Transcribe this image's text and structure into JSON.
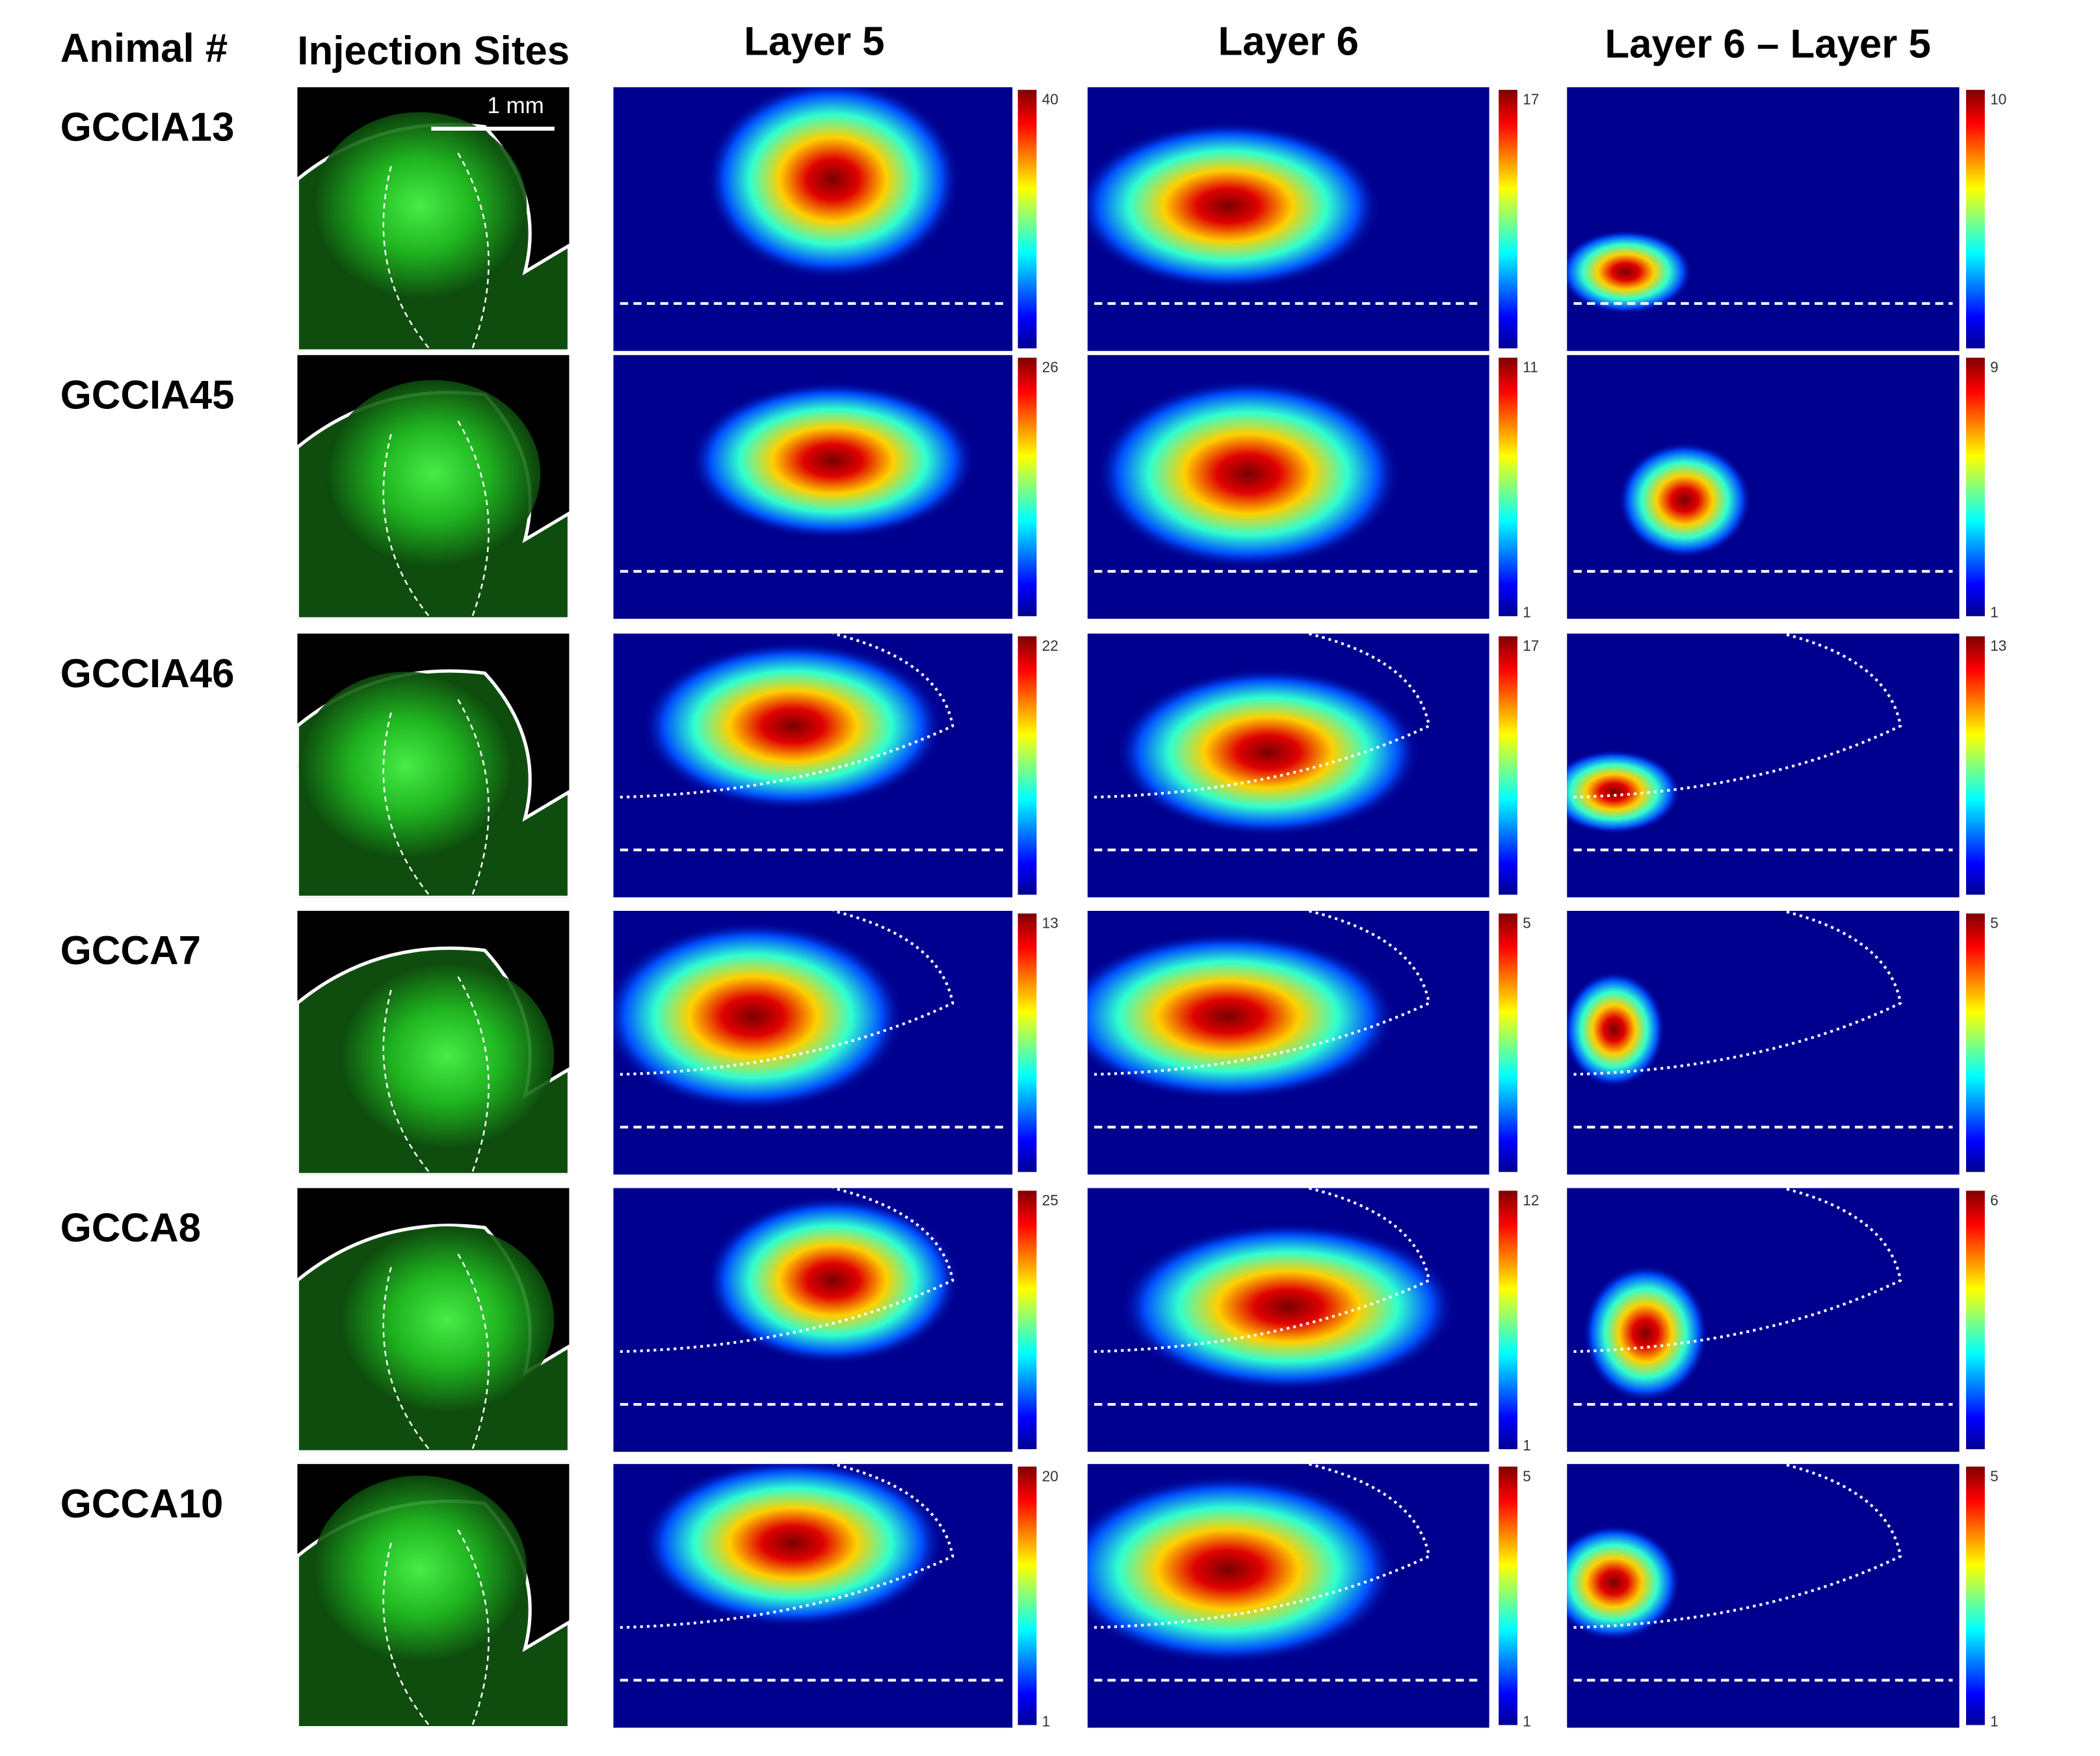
{
  "header": {
    "columns": [
      "Animal #",
      "Injection Sites",
      "Layer 5",
      "Layer 6",
      "Layer 6 – Layer 5"
    ]
  },
  "scale_bar": "1 mm",
  "rows": [
    {
      "animal": "GCCIA13",
      "colorbars": [
        {
          "max": 40
        },
        {
          "max": 17
        },
        {
          "max": 10
        }
      ]
    },
    {
      "animal": "GCCIA45",
      "colorbars": [
        {
          "max": 26
        },
        {
          "max": 11,
          "min": 1
        },
        {
          "max": 9,
          "min": 1
        }
      ]
    },
    {
      "animal": "GCCIA46",
      "colorbars": [
        {
          "max": 22
        },
        {
          "max": 17
        },
        {
          "max": 13
        }
      ]
    },
    {
      "animal": "GCCA7",
      "colorbars": [
        {
          "max": 13
        },
        {
          "max": 5
        },
        {
          "max": 5
        }
      ]
    },
    {
      "animal": "GCCA8",
      "colorbars": [
        {
          "max": 25
        },
        {
          "max": 12,
          "min": 1
        },
        {
          "max": 6
        }
      ]
    },
    {
      "animal": "GCCA10",
      "colorbars": [
        {
          "max": 20,
          "min": 1
        },
        {
          "max": 5,
          "min": 1
        },
        {
          "max": 5,
          "min": 1
        }
      ]
    }
  ]
}
